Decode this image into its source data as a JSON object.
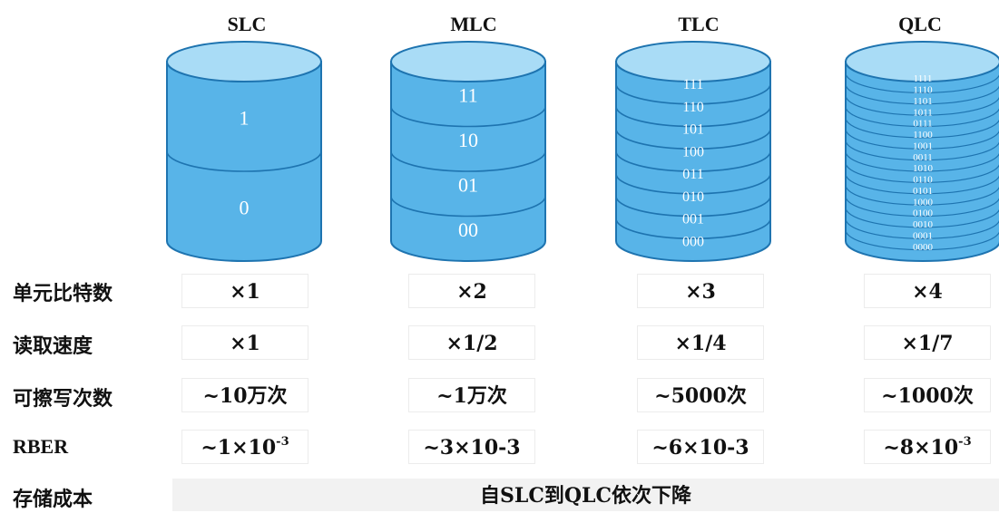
{
  "columns": [
    {
      "title": "SLC",
      "levels": [
        "1",
        "0"
      ]
    },
    {
      "title": "MLC",
      "levels": [
        "11",
        "10",
        "01",
        "00"
      ]
    },
    {
      "title": "TLC",
      "levels": [
        "111",
        "110",
        "101",
        "100",
        "011",
        "010",
        "001",
        "000"
      ]
    },
    {
      "title": "QLC",
      "levels": [
        "1111",
        "1110",
        "1101",
        "1011",
        "0111",
        "1100",
        "1001",
        "0011",
        "1010",
        "0110",
        "0101",
        "1000",
        "0100",
        "0010",
        "0001",
        "0000"
      ]
    }
  ],
  "rows": [
    {
      "label": "单元比特数",
      "values": [
        "×1",
        "×2",
        "×3",
        "×4"
      ]
    },
    {
      "label": "读取速度",
      "values": [
        "×1",
        "×1/2",
        "×1/4",
        "×1/7"
      ]
    },
    {
      "label": "可擦写次数",
      "values": [
        "~10万次",
        "~1万次",
        "~5000次",
        "~1000次"
      ]
    },
    {
      "label": "RBER",
      "values": [
        {
          "base": "~1×10",
          "sup": "-3"
        },
        {
          "base": "~3×10-3",
          "sup": ""
        },
        {
          "base": "~6×10-3",
          "sup": ""
        },
        {
          "base": "~8×10",
          "sup": "-3"
        }
      ]
    }
  ],
  "cost": {
    "label": "存储成本",
    "text": "自SLC到QLC依次下降"
  },
  "colors": {
    "cylinder_body": "#58b4e8",
    "cylinder_top": "#a9dcf6",
    "cylinder_stroke": "#1e74b0",
    "level_text": "#ffffff"
  }
}
